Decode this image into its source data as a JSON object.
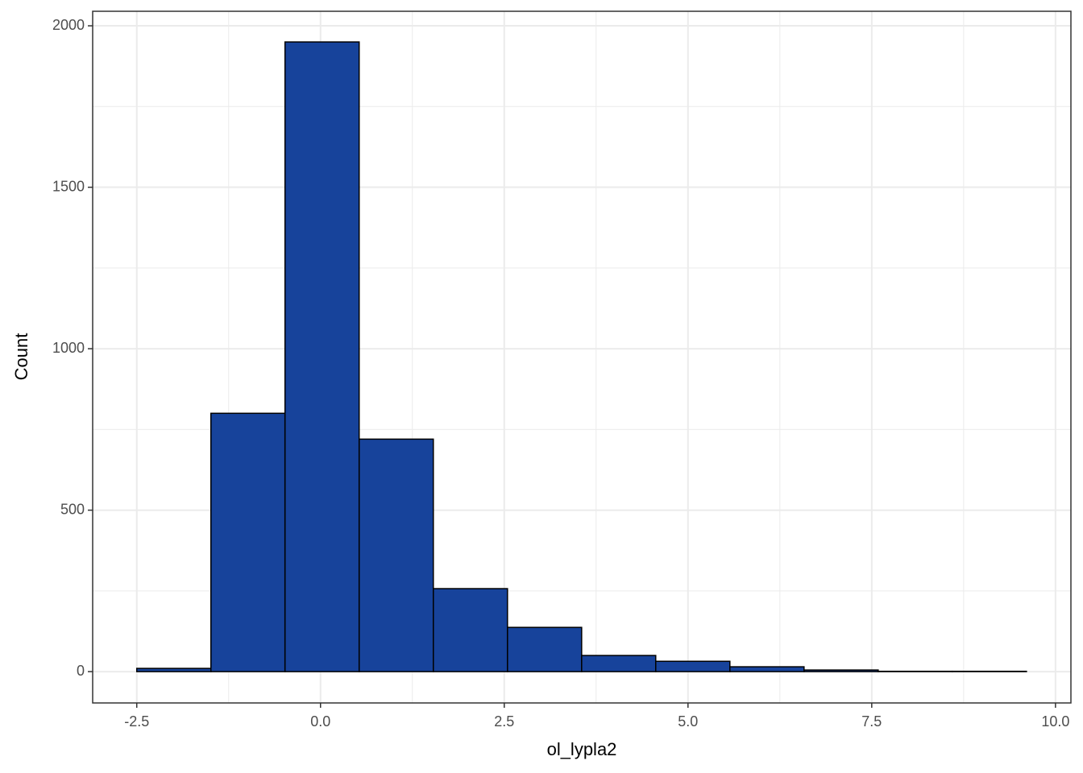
{
  "chart_data": {
    "type": "histogram",
    "x_label": "ol_lypla2",
    "y_label": "Count",
    "bins": [
      -2.5,
      -1.491,
      -0.483,
      0.526,
      1.535,
      2.544,
      3.553,
      4.561,
      5.57,
      6.579,
      7.588,
      8.596,
      9.605
    ],
    "values": [
      10,
      800,
      1950,
      720,
      257,
      137,
      50,
      32,
      15,
      5,
      1,
      1
    ],
    "color": "#17439b",
    "edge_color": "#000000",
    "xlim": [
      -3.1,
      10.21
    ],
    "ylim": [
      -97,
      2045
    ],
    "xticks": [
      -2.5,
      {
        "value": 0,
        "label": "0.0"
      },
      2.5,
      {
        "value": 5,
        "label": "5.0"
      },
      7.5,
      {
        "value": 10,
        "label": "10.0"
      }
    ],
    "yticks": [
      0,
      500,
      1000,
      1500,
      2000
    ],
    "grid": true
  }
}
